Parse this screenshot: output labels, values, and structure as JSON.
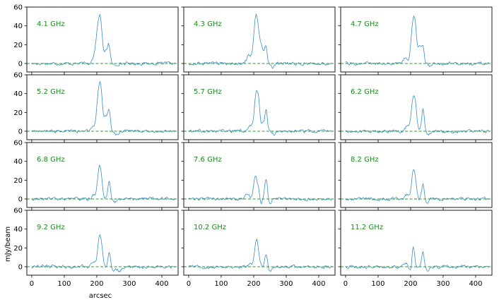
{
  "chart_data": {
    "type": "line",
    "ylabel": "mJy/beam",
    "xlabel": "arcsec",
    "xlim": [
      -15,
      450
    ],
    "ylim": [
      -9,
      60
    ],
    "xticks": [
      0,
      100,
      200,
      300,
      400
    ],
    "yticks": [
      0,
      20,
      40,
      60
    ],
    "colors": {
      "trace": "#3a8fc4",
      "baseline": "#2e9a2e",
      "label": "#1a8a1a"
    },
    "panels": [
      {
        "label": "4.1 GHz",
        "peaks": [
          [
            205,
            40,
            7
          ],
          [
            213,
            24,
            5
          ],
          [
            228,
            12,
            5
          ],
          [
            237,
            19,
            4
          ],
          [
            190,
            5,
            6
          ],
          [
            255,
            -2,
            6
          ]
        ]
      },
      {
        "label": "4.3 GHz",
        "peaks": [
          [
            205,
            39,
            6
          ],
          [
            213,
            26,
            6
          ],
          [
            225,
            16,
            5
          ],
          [
            237,
            18,
            4
          ],
          [
            185,
            8,
            7
          ],
          [
            258,
            -4,
            5
          ]
        ]
      },
      {
        "label": "4.7 GHz",
        "peaks": [
          [
            207,
            39,
            6
          ],
          [
            215,
            26,
            5
          ],
          [
            227,
            18,
            4
          ],
          [
            237,
            20,
            4
          ],
          [
            185,
            7,
            6
          ],
          [
            260,
            -3,
            5
          ]
        ]
      },
      {
        "label": "5.2 GHz",
        "peaks": [
          [
            206,
            40,
            6
          ],
          [
            214,
            27,
            5
          ],
          [
            228,
            15,
            5
          ],
          [
            238,
            21,
            4
          ],
          [
            188,
            5,
            6
          ],
          [
            262,
            -4,
            6
          ]
        ]
      },
      {
        "label": "5.7 GHz",
        "peaks": [
          [
            208,
            40,
            6
          ],
          [
            216,
            18,
            4
          ],
          [
            238,
            22,
            4
          ],
          [
            228,
            8,
            4
          ],
          [
            190,
            5,
            6
          ],
          [
            260,
            -3,
            6
          ]
        ]
      },
      {
        "label": "6.2 GHz",
        "peaks": [
          [
            208,
            34,
            6
          ],
          [
            216,
            16,
            4
          ],
          [
            238,
            23,
            4
          ],
          [
            190,
            6,
            6
          ],
          [
            255,
            -4,
            6
          ]
        ]
      },
      {
        "label": "6.8 GHz",
        "peaks": [
          [
            207,
            33,
            5
          ],
          [
            215,
            14,
            4
          ],
          [
            238,
            19,
            4
          ],
          [
            190,
            4,
            6
          ],
          [
            255,
            -4,
            6
          ]
        ]
      },
      {
        "label": "7.6 GHz",
        "peaks": [
          [
            205,
            25,
            5
          ],
          [
            215,
            10,
            4
          ],
          [
            238,
            22,
            4
          ],
          [
            222,
            -5,
            4
          ],
          [
            250,
            -5,
            5
          ],
          [
            180,
            6,
            6
          ]
        ]
      },
      {
        "label": "8.2 GHz",
        "peaks": [
          [
            208,
            31,
            5
          ],
          [
            216,
            12,
            4
          ],
          [
            238,
            15,
            4
          ],
          [
            250,
            -6,
            5
          ],
          [
            190,
            5,
            6
          ]
        ]
      },
      {
        "label": "9.2 GHz",
        "peaks": [
          [
            208,
            32,
            5
          ],
          [
            216,
            14,
            4
          ],
          [
            238,
            16,
            4
          ],
          [
            250,
            -5,
            6
          ],
          [
            270,
            -4,
            6
          ],
          [
            190,
            6,
            6
          ]
        ]
      },
      {
        "label": "10.2 GHz",
        "peaks": [
          [
            208,
            28,
            5
          ],
          [
            216,
            8,
            4
          ],
          [
            238,
            14,
            4
          ],
          [
            250,
            -6,
            5
          ],
          [
            190,
            4,
            6
          ]
        ]
      },
      {
        "label": "11.2 GHz",
        "peaks": [
          [
            208,
            23,
            4
          ],
          [
            200,
            -6,
            4
          ],
          [
            238,
            14,
            4
          ],
          [
            250,
            -5,
            5
          ],
          [
            185,
            3,
            5
          ]
        ]
      }
    ]
  }
}
